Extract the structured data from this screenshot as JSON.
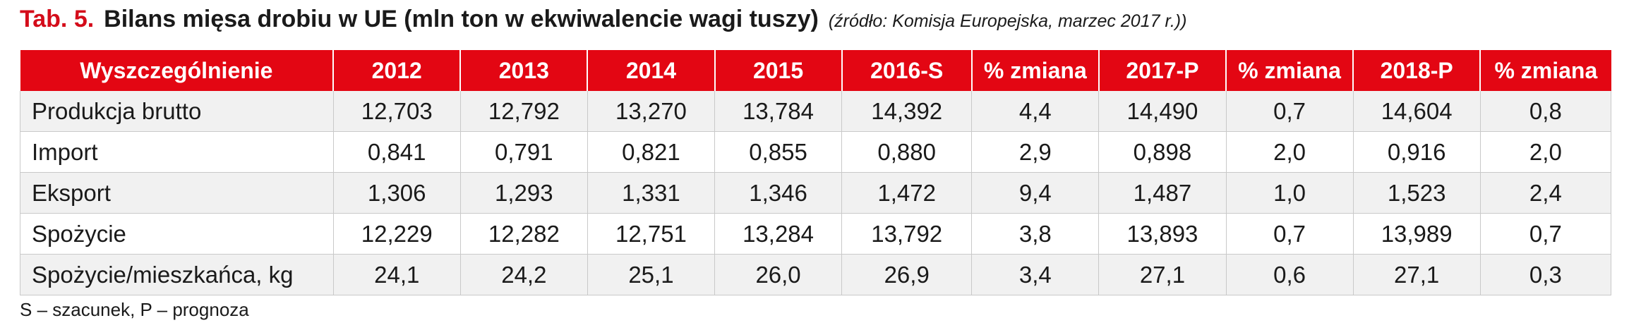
{
  "title": {
    "label": "Tab. 5.",
    "text": "Bilans mięsa drobiu w UE (mln ton w ekwiwalencie wagi tuszy)",
    "source": "(źródło: Komisja Europejska, marzec 2017 r.))"
  },
  "table": {
    "headers": [
      "Wyszczególnienie",
      "2012",
      "2013",
      "2014",
      "2015",
      "2016-S",
      "% zmiana",
      "2017-P",
      "% zmiana",
      "2018-P",
      "% zmiana"
    ],
    "rows": [
      [
        "Produkcja brutto",
        "12,703",
        "12,792",
        "13,270",
        "13,784",
        "14,392",
        "4,4",
        "14,490",
        "0,7",
        "14,604",
        "0,8"
      ],
      [
        "Import",
        "0,841",
        "0,791",
        "0,821",
        "0,855",
        "0,880",
        "2,9",
        "0,898",
        "2,0",
        "0,916",
        "2,0"
      ],
      [
        "Eksport",
        "1,306",
        "1,293",
        "1,331",
        "1,346",
        "1,472",
        "9,4",
        "1,487",
        "1,0",
        "1,523",
        "2,4"
      ],
      [
        "Spożycie",
        "12,229",
        "12,282",
        "12,751",
        "13,284",
        "13,792",
        "3,8",
        "13,893",
        "0,7",
        "13,989",
        "0,7"
      ],
      [
        "Spożycie/mieszkańca, kg",
        "24,1",
        "24,2",
        "25,1",
        "26,0",
        "26,9",
        "3,4",
        "27,1",
        "0,6",
        "27,1",
        "0,3"
      ]
    ]
  },
  "footnote": "S – szacunek, P – prognoza",
  "colors": {
    "accent": "#e30613",
    "title_label": "#d40c1a",
    "row_stripe": "#f1f1f1",
    "grid": "#c9c9c9"
  }
}
